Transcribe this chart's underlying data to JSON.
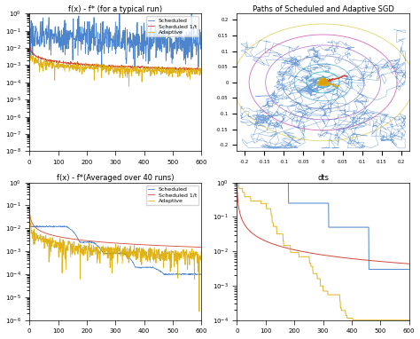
{
  "title_tl": "f(x) - f* (for a typical run)",
  "title_tr": "Paths of Scheduled and Adaptive SGD",
  "title_bl": "f(x) - f*(Averaged over 40 runs)",
  "title_br": "dts",
  "xlim": [
    0,
    600
  ],
  "ylim_tl": [
    1e-08,
    1.0
  ],
  "ylim_bl": [
    1e-06,
    1.0
  ],
  "ylim_br": [
    0.0001,
    1.0
  ],
  "legend_labels": [
    "Scheduled",
    "Scheduled 1/t",
    "Adaptive"
  ],
  "color_scheduled": "#3878c8",
  "color_sched1t": "#cc3322",
  "color_adaptive": "#ddaa00",
  "figure_bg": "#ffffff",
  "axes_bg": "#ffffff",
  "contour_levels": [
    0.02,
    0.04,
    0.07,
    0.1,
    0.14,
    0.18,
    0.22
  ],
  "contour_colors": [
    "#00cccc",
    "#00bbbb",
    "#44aacc",
    "#7788cc",
    "#aa66cc",
    "#cc44aa",
    "#ddcc44"
  ]
}
